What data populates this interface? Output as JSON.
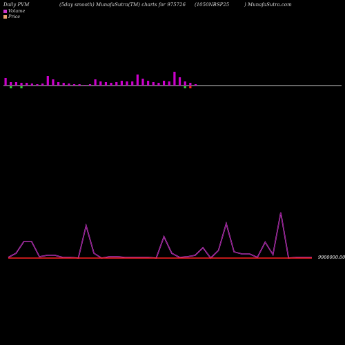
{
  "header": {
    "left": "Daily PVM",
    "mid": "(5day smooth) MunafaSutra(TM) charts for 975726",
    "code": "(1050NBSP25",
    "site": ") MunafaSutra.com"
  },
  "legend": {
    "volume_label": "Volume",
    "price_label": "Price",
    "volume_color": "#cc33cc",
    "price_color": "#e8a070"
  },
  "colors": {
    "up_bar": "#cc00cc",
    "down_bar": "#33cc33",
    "volume_line": "#ff66ff",
    "price_line": "#ff2222",
    "baseline": "#cccccc"
  },
  "chart_data": [
    {
      "type": "bar",
      "title": "",
      "series": [
        {
          "values": [
            11,
            5,
            5,
            4,
            4,
            3,
            2,
            3,
            14,
            9,
            5,
            4,
            3,
            2,
            2,
            1,
            2,
            9,
            6,
            5,
            4,
            5,
            7,
            6,
            6,
            16,
            10,
            7,
            5,
            4,
            7,
            6,
            20,
            12,
            6,
            4,
            2
          ]
        }
      ],
      "directions": [
        "up",
        "down",
        "up",
        "down",
        "up",
        "up",
        "up",
        "up",
        "up",
        "up",
        "up",
        "up",
        "up",
        "up",
        "up",
        "up",
        "up",
        "up",
        "up",
        "up",
        "up",
        "up",
        "up",
        "up",
        "up",
        "up",
        "up",
        "up",
        "up",
        "up",
        "up",
        "up",
        "up",
        "up",
        "down",
        "down",
        "up"
      ]
    },
    {
      "type": "line",
      "title": "",
      "y_label_value": "9900000.00",
      "series": [
        {
          "values": [
            2,
            8,
            25,
            25,
            3,
            5,
            5,
            2,
            2,
            1,
            48,
            8,
            1,
            3,
            3,
            2,
            2,
            2,
            2,
            1,
            32,
            8,
            2,
            3,
            5,
            16,
            1,
            12,
            51,
            10,
            7,
            7,
            2,
            24,
            6,
            67,
            1,
            2,
            2,
            2
          ]
        },
        {
          "values": [
            1,
            1,
            1,
            1,
            1,
            1,
            1,
            1,
            1,
            1,
            1,
            1,
            1,
            1,
            1,
            1,
            1,
            1,
            1,
            1,
            1,
            1,
            1,
            1,
            1,
            1,
            1,
            1,
            1,
            1,
            1,
            1,
            1,
            1,
            1,
            1,
            1,
            1,
            1,
            1
          ]
        }
      ]
    }
  ]
}
